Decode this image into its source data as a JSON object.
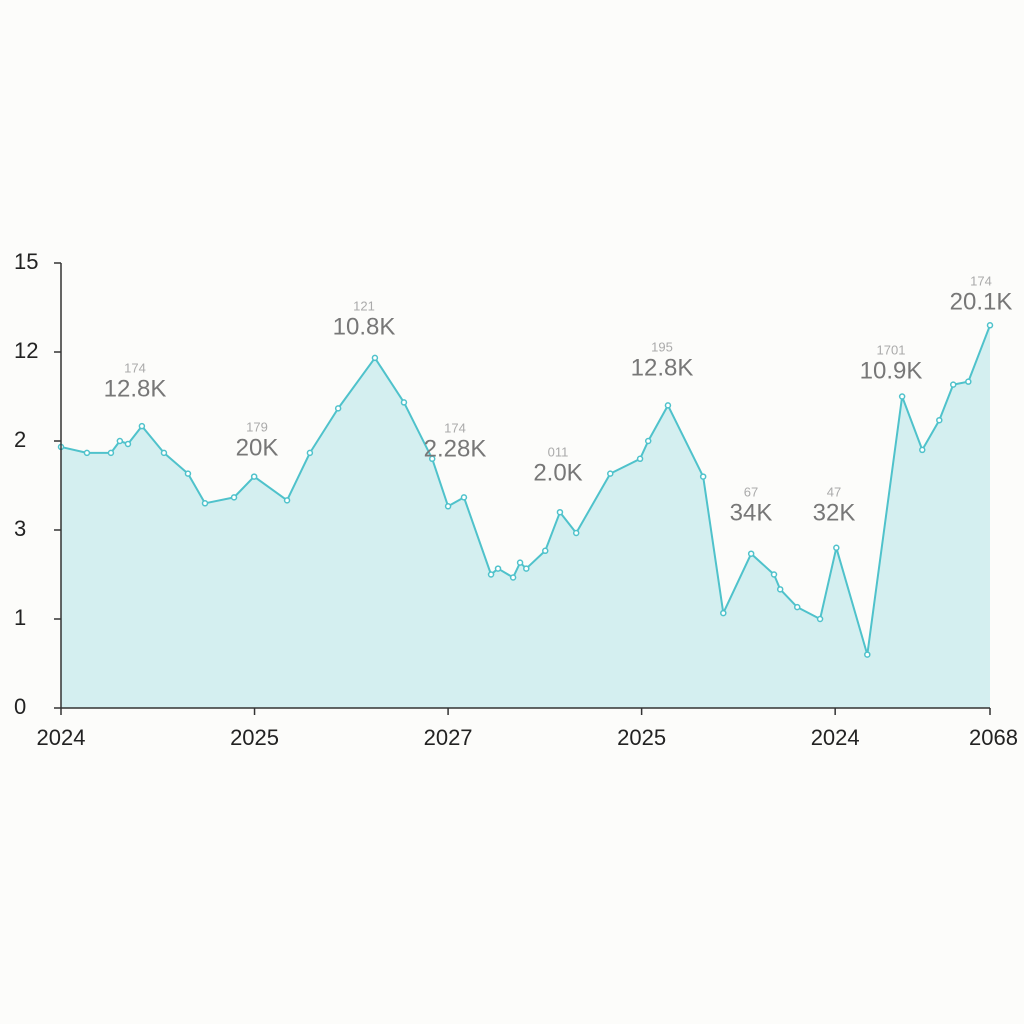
{
  "chart_data": {
    "type": "area",
    "color": "#4fc2cb",
    "fill": "#d4eff0",
    "x": [
      0,
      0.67,
      1.29,
      1.52,
      1.73,
      2.09,
      2.66,
      3.28,
      3.72,
      4.47,
      4.99,
      5.84,
      6.43,
      7.16,
      8.11,
      8.86,
      9.59,
      10.0,
      10.41,
      11.11,
      11.29,
      11.68,
      11.86,
      12.02,
      12.51,
      12.89,
      13.31,
      14.19,
      14.96,
      15.17,
      15.68,
      16.59,
      17.11,
      17.83,
      18.42,
      18.58,
      19.02,
      19.61,
      20.03,
      20.83,
      21.73,
      22.25,
      22.69,
      23.05,
      23.44,
      24.0
    ],
    "values": [
      8.8,
      8.6,
      8.6,
      9.0,
      8.9,
      9.5,
      8.6,
      7.9,
      6.9,
      7.1,
      7.8,
      7.0,
      8.6,
      10.1,
      11.8,
      10.3,
      8.4,
      6.8,
      7.1,
      4.5,
      4.7,
      4.4,
      4.9,
      4.7,
      5.3,
      6.6,
      5.9,
      7.9,
      8.4,
      9.0,
      10.2,
      7.8,
      3.2,
      5.2,
      4.5,
      4.0,
      3.4,
      3.0,
      5.4,
      1.8,
      10.5,
      8.7,
      9.7,
      10.9,
      11.0,
      12.9
    ],
    "xlim": [
      0,
      24
    ],
    "xticks": [
      {
        "value": 0,
        "label": "2024"
      },
      {
        "value": 5,
        "label": "2025"
      },
      {
        "value": 10,
        "label": "2027"
      },
      {
        "value": 15,
        "label": "2025"
      },
      {
        "value": 20,
        "label": "2024"
      },
      {
        "value": 24,
        "label": "2068"
      }
    ],
    "ylim": [
      0,
      15
    ],
    "yticks": [
      0,
      {
        "value": 3,
        "label": "1"
      },
      {
        "value": 6,
        "label": "3"
      },
      {
        "value": 9,
        "label": "2"
      },
      12,
      15
    ],
    "annotations": [
      {
        "text": "12.8K",
        "note": "174"
      },
      {
        "text": "20K",
        "note": "179"
      },
      {
        "text": "10.8K",
        "note": "121"
      },
      {
        "text": "2.28K",
        "note": "174"
      },
      {
        "text": "2.0K",
        "note": "011"
      },
      {
        "text": "12.8K",
        "note": "195"
      },
      {
        "text": "34K",
        "note": "67"
      },
      {
        "text": "32K",
        "note": "47"
      },
      {
        "text": "10.9K",
        "note": "1701"
      },
      {
        "text": "20.1K",
        "note": "174"
      }
    ]
  }
}
